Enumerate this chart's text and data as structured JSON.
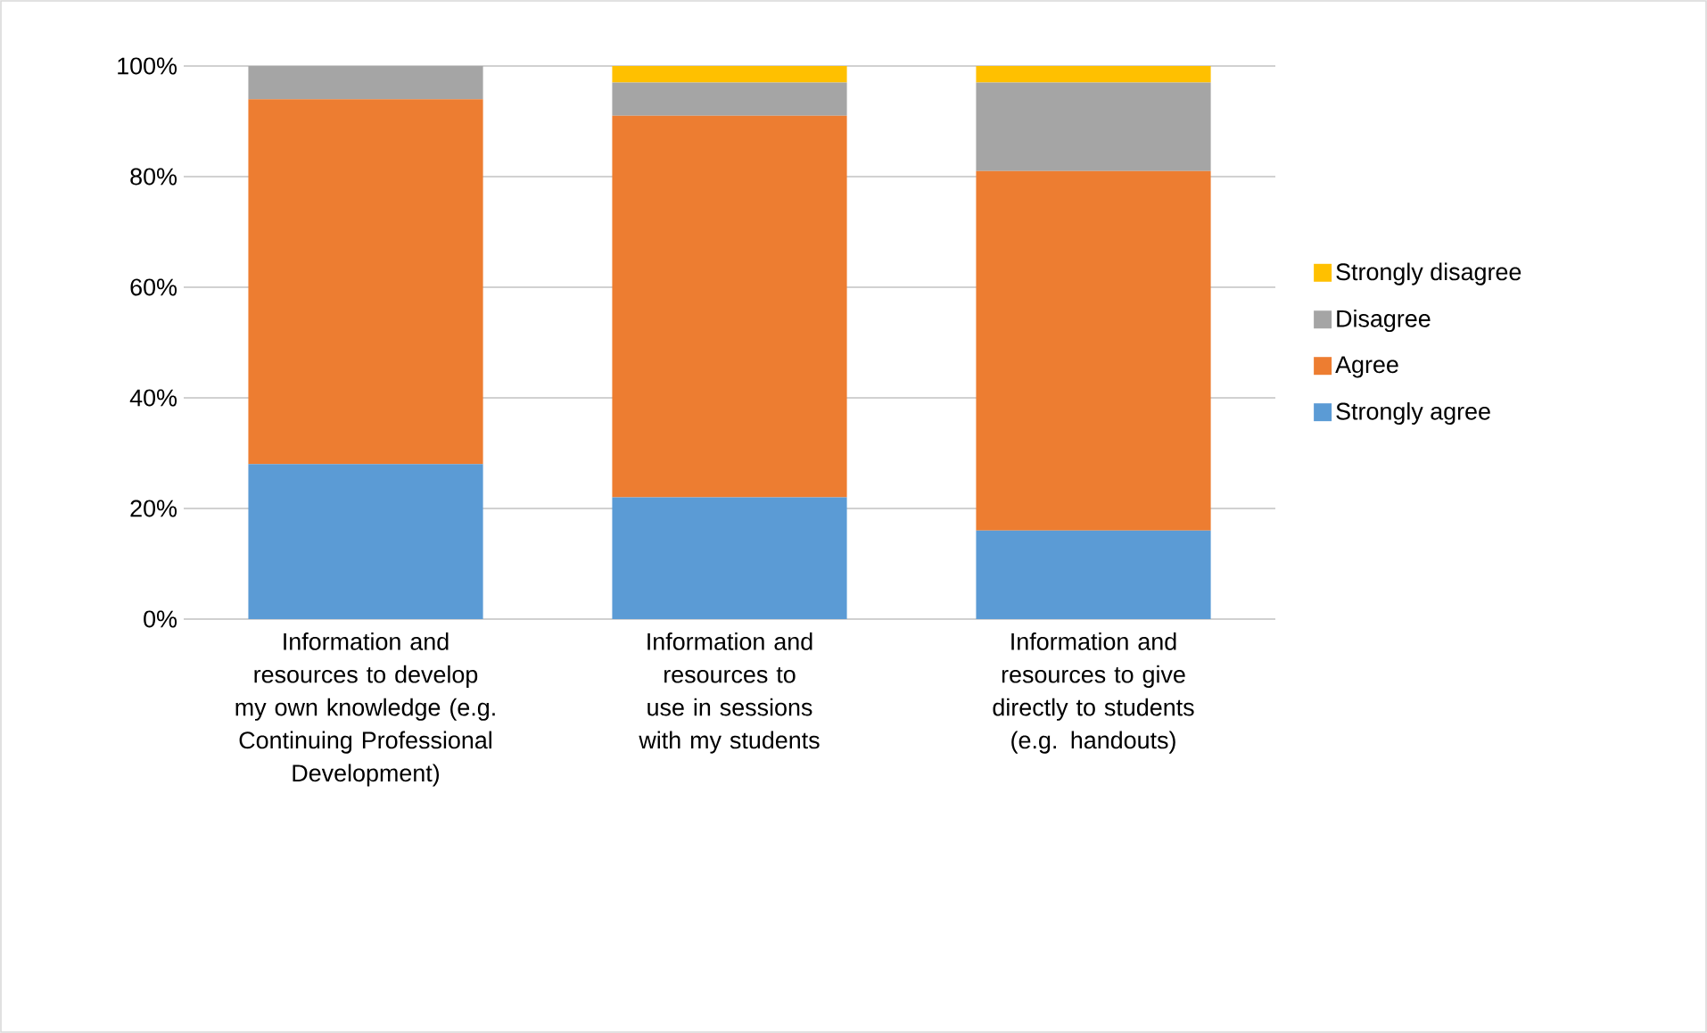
{
  "chart_data": {
    "type": "bar",
    "stacked": true,
    "categories": [
      "Information and resources to develop my own knowledge (e.g. Continuing Professional Development)",
      "Information and resources to use in sessions with my students",
      "Information and resources to give directly to students (e.g. handouts)"
    ],
    "series": [
      {
        "name": "Strongly agree",
        "color": "#5b9bd5",
        "values": [
          28,
          22,
          16
        ]
      },
      {
        "name": "Agree",
        "color": "#ed7d31",
        "values": [
          66,
          69,
          65
        ]
      },
      {
        "name": "Disagree",
        "color": "#a5a5a5",
        "values": [
          6,
          6,
          16
        ]
      },
      {
        "name": "Strongly disagree",
        "color": "#ffc000",
        "values": [
          0,
          3,
          3
        ]
      }
    ],
    "ylim": [
      0,
      100
    ],
    "yticks": [
      {
        "value": 0,
        "label": "0%"
      },
      {
        "value": 20,
        "label": "20%"
      },
      {
        "value": 40,
        "label": "40%"
      },
      {
        "value": 60,
        "label": "60%"
      },
      {
        "value": 80,
        "label": "80%"
      },
      {
        "value": 100,
        "label": "100%"
      }
    ],
    "grid": "y",
    "legend": "right"
  }
}
